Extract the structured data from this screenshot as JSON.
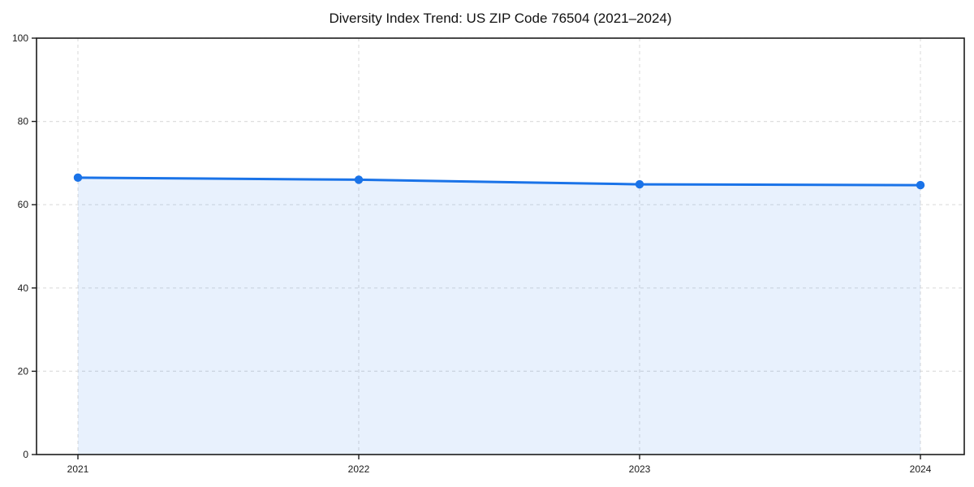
{
  "chart_data": {
    "type": "area",
    "title": "Diversity Index Trend: US ZIP Code 76504 (2021–2024)",
    "categories": [
      "2021",
      "2022",
      "2023",
      "2024"
    ],
    "values": [
      66.5,
      66.0,
      64.9,
      64.7
    ],
    "xlabel": "",
    "ylabel": "",
    "ylim": [
      0,
      100
    ],
    "yticks": [
      0,
      20,
      40,
      60,
      80,
      100
    ],
    "grid": true,
    "grid_style": "dashed",
    "legend": "none",
    "line_color": "#1a73e8",
    "fill_color": "#1a73e8",
    "fill_opacity": 0.1,
    "grid_color": "#dedede",
    "axis_color": "#1c1c1c",
    "marker": "circle"
  }
}
